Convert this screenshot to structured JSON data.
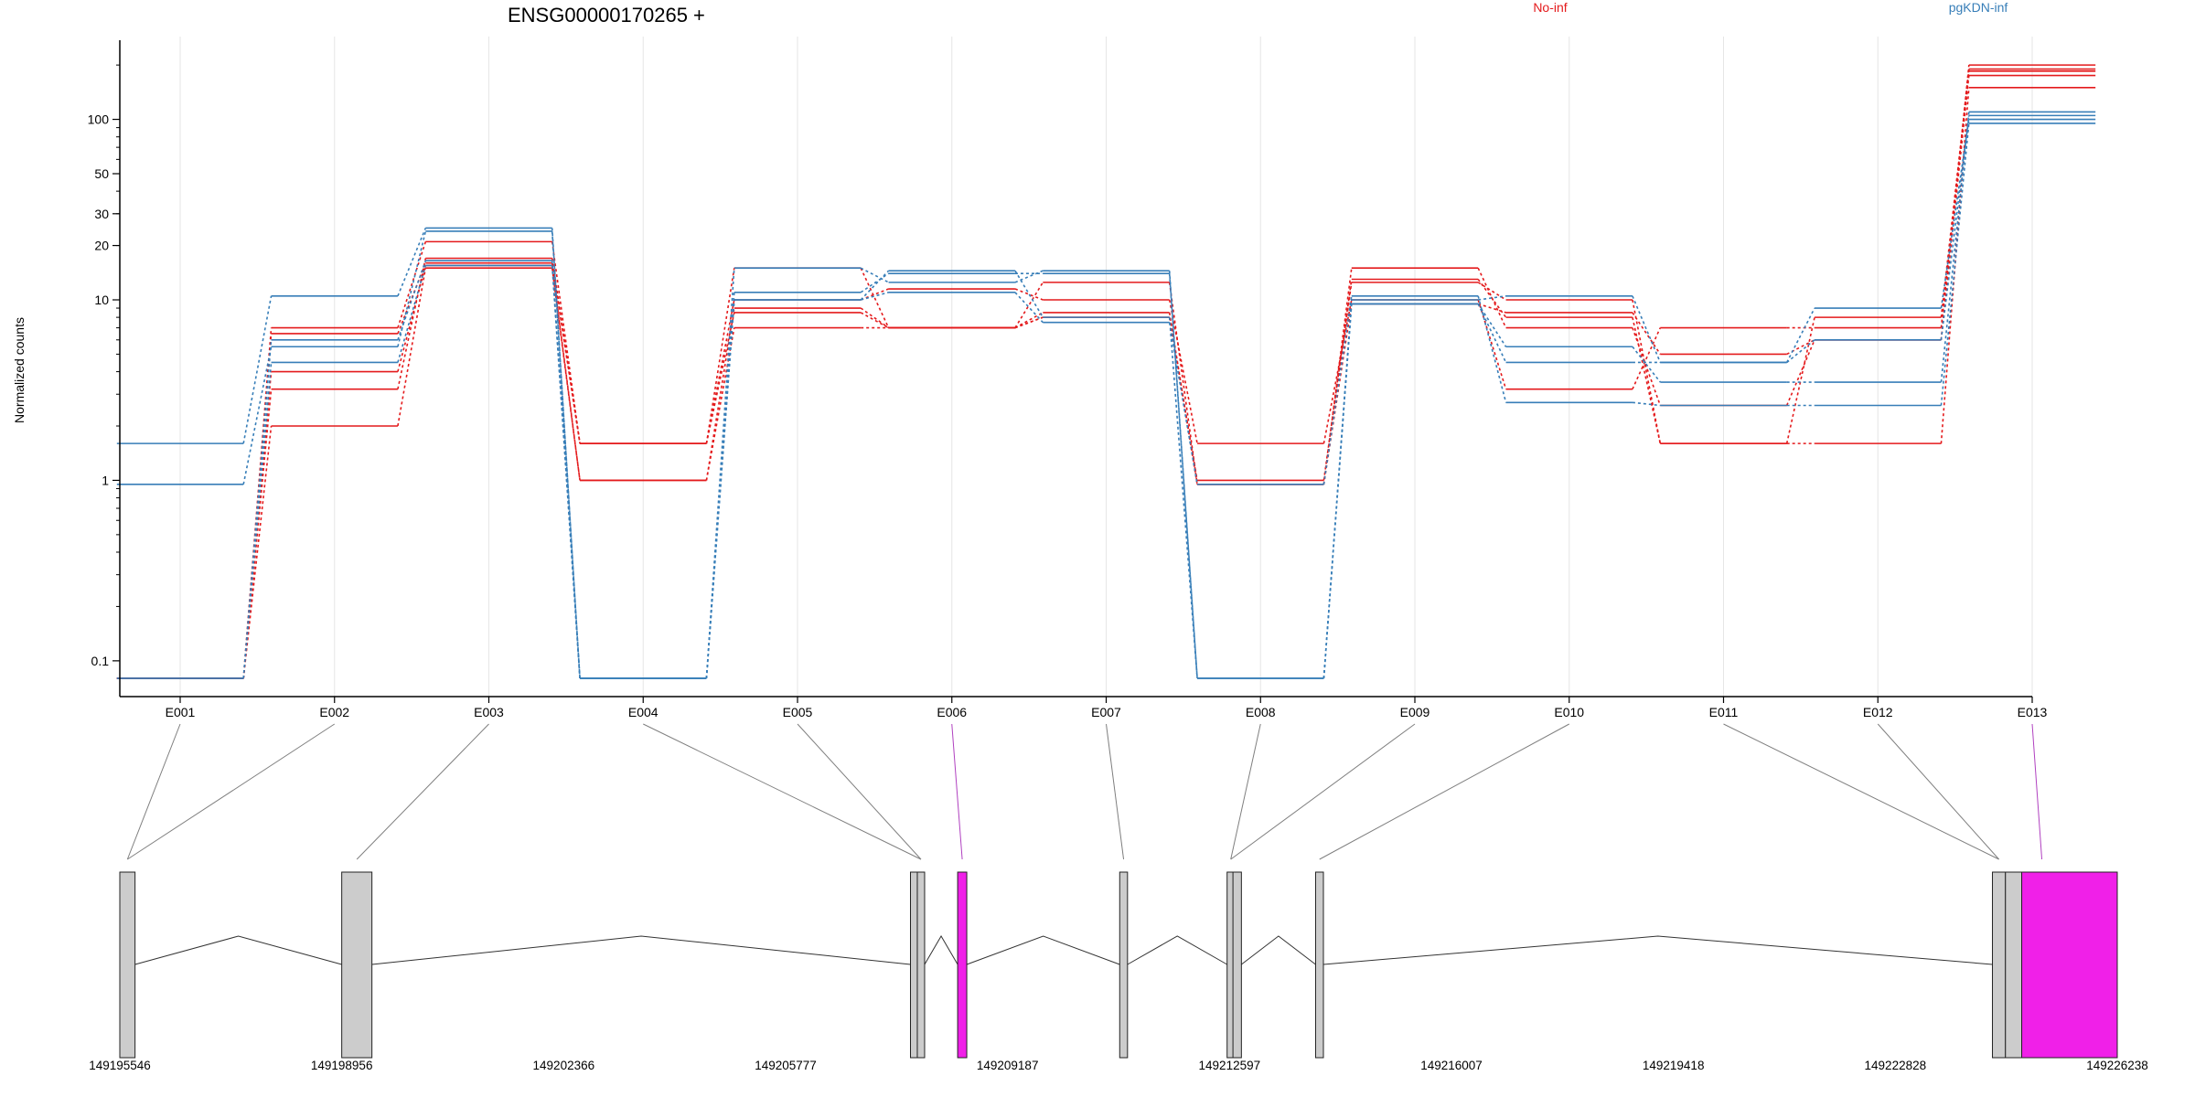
{
  "chart_data": [
    {
      "type": "line",
      "title": "ENSG00000170265 +",
      "ylabel": "Normalized counts",
      "y_scale": "log",
      "ylim": [
        0.08,
        250
      ],
      "y_ticks": [
        0.1,
        1,
        10,
        20,
        30,
        50,
        100
      ],
      "y_tick_labels": [
        "0.1",
        "1",
        "10",
        "20",
        "30",
        "50",
        "100"
      ],
      "x_categories": [
        "E001",
        "E002",
        "E003",
        "E004",
        "E005",
        "E006",
        "E007",
        "E008",
        "E009",
        "E010",
        "E011",
        "E012",
        "E013"
      ],
      "grid": "vertical",
      "legend": [
        {
          "label": "No-inf",
          "color": "#e41a1c"
        },
        {
          "label": "pgKDN-inf",
          "color": "#377eb8"
        }
      ],
      "series": [
        {
          "group": "No-inf",
          "color": "#e41a1c",
          "values": [
            0.08,
            2.0,
            15.0,
            1.0,
            7.0,
            7.0,
            8.0,
            1.0,
            13.0,
            8.0,
            1.6,
            8.0,
            185
          ]
        },
        {
          "group": "No-inf",
          "color": "#e41a1c",
          "values": [
            0.08,
            3.2,
            17.0,
            1.6,
            8.5,
            7.0,
            8.5,
            0.95,
            15.0,
            7.0,
            2.6,
            6.0,
            175
          ]
        },
        {
          "group": "No-inf",
          "color": "#e41a1c",
          "values": [
            0.08,
            7.0,
            21.0,
            1.6,
            10.0,
            11.5,
            10.0,
            1.6,
            10.0,
            3.2,
            7.0,
            7.0,
            190
          ]
        },
        {
          "group": "No-inf",
          "color": "#e41a1c",
          "values": [
            0.08,
            6.5,
            16.0,
            1.6,
            15.0,
            7.0,
            12.5,
            0.95,
            9.5,
            8.5,
            5.0,
            6.0,
            200
          ]
        },
        {
          "group": "No-inf",
          "color": "#e41a1c",
          "values": [
            0.08,
            4.0,
            15.5,
            1.0,
            9.0,
            7.0,
            8.0,
            0.95,
            12.5,
            10.0,
            1.6,
            1.6,
            150
          ]
        },
        {
          "group": "pgKDN-inf",
          "color": "#377eb8",
          "values": [
            1.6,
            10.5,
            25.0,
            0.08,
            11.0,
            14.0,
            14.0,
            0.08,
            10.0,
            10.5,
            4.5,
            9.0,
            100
          ]
        },
        {
          "group": "pgKDN-inf",
          "color": "#377eb8",
          "values": [
            0.95,
            5.5,
            24.0,
            0.08,
            15.0,
            12.5,
            14.5,
            0.08,
            9.5,
            5.5,
            3.5,
            3.5,
            110
          ]
        },
        {
          "group": "pgKDN-inf",
          "color": "#377eb8",
          "values": [
            0.08,
            4.5,
            15.5,
            0.08,
            10.0,
            11.0,
            7.5,
            0.95,
            10.5,
            2.7,
            2.6,
            2.6,
            95
          ]
        },
        {
          "group": "pgKDN-inf",
          "color": "#377eb8",
          "values": [
            0.08,
            6.0,
            16.5,
            0.08,
            10.0,
            14.5,
            8.0,
            0.08,
            9.5,
            4.5,
            4.5,
            6.0,
            105
          ]
        }
      ]
    },
    {
      "type": "diagram",
      "coord_ticks": [
        "149195546",
        "149198956",
        "149202366",
        "149205777",
        "149209187",
        "149212597",
        "149216007",
        "149219418",
        "149222828",
        "149226238"
      ],
      "coord_range": [
        149195546,
        149226238
      ],
      "exons": [
        {
          "id": "E001",
          "start": 149195546,
          "end": 149195780,
          "highlight": false
        },
        {
          "id": "E002",
          "start": 149198956,
          "end": 149199420,
          "highlight": false
        },
        {
          "id": "E003",
          "start": 149207695,
          "end": 149207790,
          "highlight": false
        },
        {
          "id": "E004",
          "start": 149207800,
          "end": 149207890,
          "highlight": false
        },
        {
          "id": "E005",
          "start": 149208420,
          "end": 149208560,
          "highlight": true
        },
        {
          "id": "E006",
          "start": 149210910,
          "end": 149211030,
          "highlight": false
        },
        {
          "id": "E007",
          "start": 149212560,
          "end": 149212640,
          "highlight": false
        },
        {
          "id": "E008",
          "start": 149212650,
          "end": 149212780,
          "highlight": false
        },
        {
          "id": "E009",
          "start": 149213920,
          "end": 149214040,
          "highlight": false
        },
        {
          "id": "E010",
          "start": 149224320,
          "end": 149224520,
          "highlight": false
        },
        {
          "id": "E011",
          "start": 149224520,
          "end": 149224770,
          "highlight": false
        },
        {
          "id": "E012",
          "start": 149224770,
          "end": 149226238,
          "highlight": true
        }
      ],
      "connections": [
        {
          "label": "E001",
          "exon": "E001",
          "highlight": false
        },
        {
          "label": "E002",
          "exon": "E001",
          "highlight": false
        },
        {
          "label": "E003",
          "exon": "E002",
          "highlight": false
        },
        {
          "label": "E004",
          "exon": "E004",
          "highlight": false
        },
        {
          "label": "E005",
          "exon": "E004",
          "highlight": false
        },
        {
          "label": "E006",
          "exon": "E005",
          "highlight": true
        },
        {
          "label": "E007",
          "exon": "E006",
          "highlight": false
        },
        {
          "label": "E008",
          "exon": "E007",
          "highlight": false
        },
        {
          "label": "E009",
          "exon": "E007",
          "highlight": false
        },
        {
          "label": "E010",
          "exon": "E009",
          "highlight": false
        },
        {
          "label": "E011",
          "exon": "E010",
          "highlight": false
        },
        {
          "label": "E012",
          "exon": "E010",
          "highlight": false
        },
        {
          "label": "E013",
          "exon": "E012",
          "highlight": true
        }
      ],
      "colors": {
        "exon": "#cccccc",
        "highlight": "#f020e8",
        "link": "#7f7f7f",
        "highlight_link": "#b040c0"
      }
    }
  ]
}
